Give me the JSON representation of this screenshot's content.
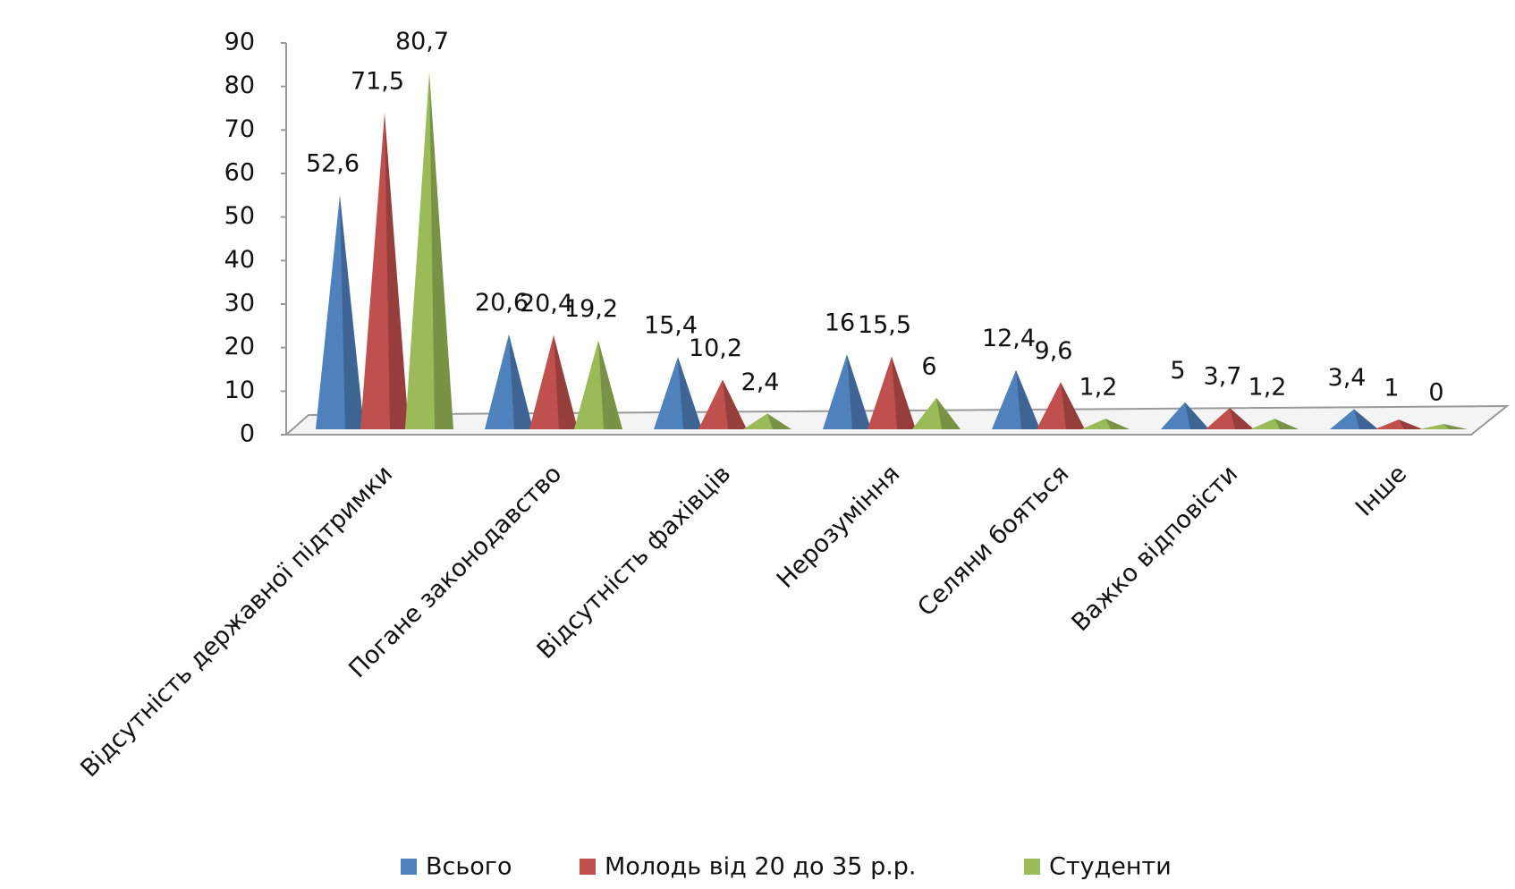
{
  "chart_data": {
    "type": "pyramid3d",
    "categories": [
      "Відсутність державної підтримки",
      "Погане законодавство",
      "Відсутність фахівців",
      "Нерозуміння",
      "Селяни бояться",
      "Важко відповісти",
      "Інше"
    ],
    "series": [
      {
        "name": "Всього",
        "color": "#4f81bd",
        "values": [
          52.6,
          20.6,
          15.4,
          16,
          12.4,
          5,
          3.4
        ],
        "value_labels": [
          "52,6",
          "20,6",
          "15,4",
          "16",
          "12,4",
          "5",
          "3,4"
        ]
      },
      {
        "name": "Молодь від 20 до 35 р.р.",
        "color": "#c0504d",
        "values": [
          71.5,
          20.4,
          10.2,
          15.5,
          9.6,
          3.7,
          1
        ],
        "value_labels": [
          "71,5",
          "20,4",
          "10,2",
          "15,5",
          "9,6",
          "3,7",
          "1"
        ]
      },
      {
        "name": "Студенти",
        "color": "#9bbb59",
        "values": [
          80.7,
          19.2,
          2.4,
          6,
          1.2,
          1.2,
          0
        ],
        "value_labels": [
          "80,7",
          "19,2",
          "2,4",
          "6",
          "1,2",
          "1,2",
          "0"
        ]
      }
    ],
    "ylim": [
      0,
      90
    ],
    "yticks": [
      0,
      10,
      20,
      30,
      40,
      50,
      60,
      70,
      80,
      90
    ],
    "legend": "bottom"
  }
}
